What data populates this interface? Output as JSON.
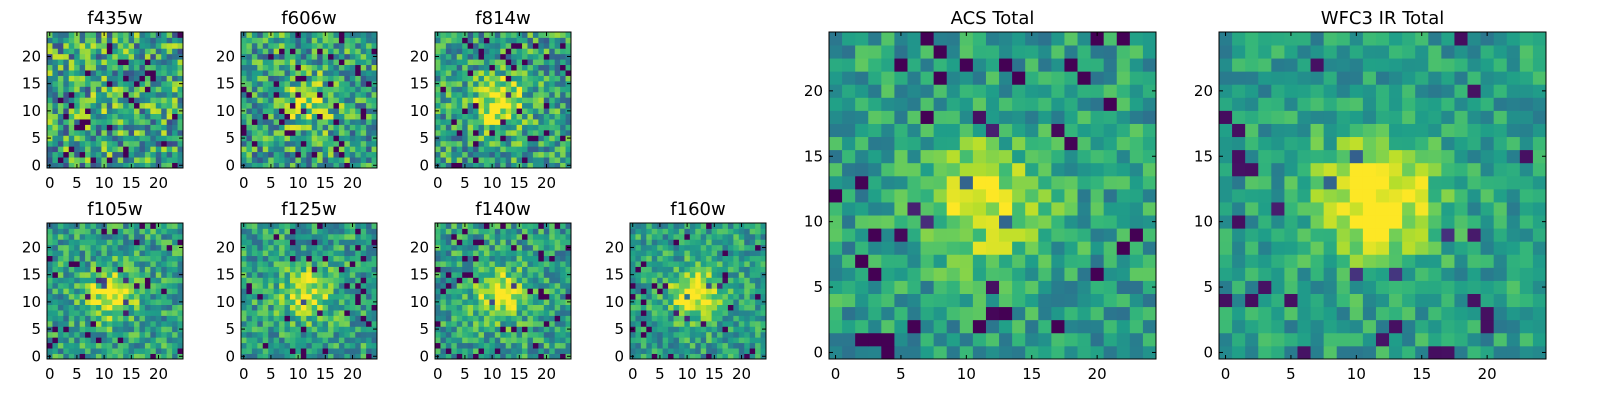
{
  "chart_data": [
    {
      "type": "heatmap",
      "title": "f435w",
      "x_ticks": [
        "0",
        "5",
        "10",
        "15",
        "20"
      ],
      "y_ticks": [
        "0",
        "5",
        "10",
        "15",
        "20"
      ],
      "grid_size": 25,
      "xlim": [
        -0.5,
        24.5
      ],
      "ylim": [
        -0.5,
        24.5
      ],
      "colormap": "viridis",
      "seed": 11,
      "peak": 0.05,
      "noise": 0.75
    },
    {
      "type": "heatmap",
      "title": "f606w",
      "x_ticks": [
        "0",
        "5",
        "10",
        "15",
        "20"
      ],
      "y_ticks": [
        "0",
        "5",
        "10",
        "15",
        "20"
      ],
      "grid_size": 25,
      "xlim": [
        -0.5,
        24.5
      ],
      "ylim": [
        -0.5,
        24.5
      ],
      "colormap": "viridis",
      "seed": 23,
      "peak": 0.35,
      "noise": 0.65
    },
    {
      "type": "heatmap",
      "title": "f814w",
      "x_ticks": [
        "0",
        "5",
        "10",
        "15",
        "20"
      ],
      "y_ticks": [
        "0",
        "5",
        "10",
        "15",
        "20"
      ],
      "grid_size": 25,
      "xlim": [
        -0.5,
        24.5
      ],
      "ylim": [
        -0.5,
        24.5
      ],
      "colormap": "viridis",
      "seed": 37,
      "peak": 0.45,
      "noise": 0.6
    },
    {
      "type": "heatmap",
      "title": "f105w",
      "x_ticks": [
        "0",
        "5",
        "10",
        "15",
        "20"
      ],
      "y_ticks": [
        "0",
        "5",
        "10",
        "15",
        "20"
      ],
      "grid_size": 25,
      "xlim": [
        -0.5,
        24.5
      ],
      "ylim": [
        -0.5,
        24.5
      ],
      "colormap": "viridis",
      "seed": 41,
      "peak": 0.45,
      "noise": 0.5
    },
    {
      "type": "heatmap",
      "title": "f125w",
      "x_ticks": [
        "0",
        "5",
        "10",
        "15",
        "20"
      ],
      "y_ticks": [
        "0",
        "5",
        "10",
        "15",
        "20"
      ],
      "grid_size": 25,
      "xlim": [
        -0.5,
        24.5
      ],
      "ylim": [
        -0.5,
        24.5
      ],
      "colormap": "viridis",
      "seed": 53,
      "peak": 0.4,
      "noise": 0.5
    },
    {
      "type": "heatmap",
      "title": "f140w",
      "x_ticks": [
        "0",
        "5",
        "10",
        "15",
        "20"
      ],
      "y_ticks": [
        "0",
        "5",
        "10",
        "15",
        "20"
      ],
      "grid_size": 25,
      "xlim": [
        -0.5,
        24.5
      ],
      "ylim": [
        -0.5,
        24.5
      ],
      "colormap": "viridis",
      "seed": 67,
      "peak": 0.45,
      "noise": 0.5
    },
    {
      "type": "heatmap",
      "title": "f160w",
      "x_ticks": [
        "0",
        "5",
        "10",
        "15",
        "20"
      ],
      "y_ticks": [
        "0",
        "5",
        "10",
        "15",
        "20"
      ],
      "grid_size": 25,
      "xlim": [
        -0.5,
        24.5
      ],
      "ylim": [
        -0.5,
        24.5
      ],
      "colormap": "viridis",
      "seed": 79,
      "peak": 0.5,
      "noise": 0.45
    },
    {
      "type": "heatmap",
      "title": "ACS Total",
      "x_ticks": [
        "0",
        "5",
        "10",
        "15",
        "20"
      ],
      "y_ticks": [
        "0",
        "5",
        "10",
        "15",
        "20"
      ],
      "grid_size": 25,
      "xlim": [
        -0.5,
        24.5
      ],
      "ylim": [
        -0.5,
        24.5
      ],
      "colormap": "viridis",
      "seed": 97,
      "peak": 0.4,
      "noise": 0.4
    },
    {
      "type": "heatmap",
      "title": "WFC3 IR Total",
      "x_ticks": [
        "0",
        "5",
        "10",
        "15",
        "20"
      ],
      "y_ticks": [
        "0",
        "5",
        "10",
        "15",
        "20"
      ],
      "grid_size": 25,
      "xlim": [
        -0.5,
        24.5
      ],
      "ylim": [
        -0.5,
        24.5
      ],
      "colormap": "viridis",
      "seed": 113,
      "peak": 0.55,
      "noise": 0.35
    }
  ]
}
